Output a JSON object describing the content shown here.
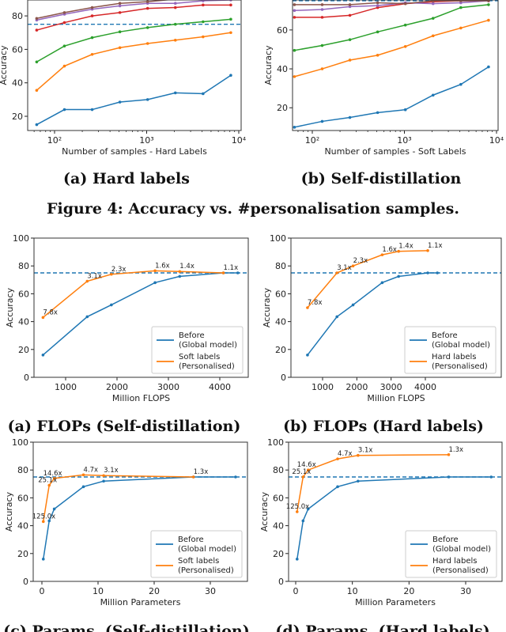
{
  "figure_caption": "Figure 4: Accuracy vs. #personalisation samples.",
  "subcaptions": [
    "(a) Hard labels",
    "(b) Self-distillation",
    "(a) FLOPs (Self-distillation)",
    "(b) FLOPs (Hard labels)",
    "(c) Params. (Self-distillation)",
    "(d) Params. (Hard labels)"
  ],
  "colors": {
    "blue": "#1f77b4",
    "orange": "#ff7f0e",
    "green": "#2ca02c",
    "red": "#d62728",
    "purple": "#9467bd",
    "brown": "#8c564b"
  },
  "chart_data": [
    {
      "type": "line",
      "xscale": "log",
      "xlabel": "Number of samples - Hard Labels",
      "ylabel": "Accuracy",
      "x": [
        64,
        128,
        256,
        512,
        1024,
        2048,
        4096,
        8192
      ],
      "xticks": [
        100,
        1000,
        10000
      ],
      "xtick_labels": [
        "10²",
        "10³",
        "10⁴"
      ],
      "yticks": [
        20,
        40,
        60,
        80
      ],
      "ylim": [
        11.5,
        89.5
      ],
      "baseline": 75,
      "series": [
        {
          "name": "s1",
          "color": "#1f77b4",
          "values": [
            15,
            24,
            24,
            28.5,
            30,
            34,
            33.5,
            44.5
          ]
        },
        {
          "name": "s2",
          "color": "#ff7f0e",
          "values": [
            35.5,
            50,
            57,
            61,
            63.5,
            65.5,
            67.5,
            70
          ]
        },
        {
          "name": "s3",
          "color": "#2ca02c",
          "values": [
            52.5,
            62,
            67,
            70.5,
            73,
            75,
            76.5,
            78
          ]
        },
        {
          "name": "s4",
          "color": "#d62728",
          "values": [
            71.5,
            76,
            80,
            82,
            84.5,
            85,
            86.5,
            86.5
          ]
        },
        {
          "name": "s5",
          "color": "#9467bd",
          "values": [
            77.5,
            81,
            84,
            86,
            87.5,
            87.5,
            89,
            89.5
          ]
        },
        {
          "name": "s6",
          "color": "#8c564b",
          "values": [
            78.5,
            82,
            85,
            87.5,
            88.5,
            90,
            91,
            92
          ]
        }
      ]
    },
    {
      "type": "line",
      "xscale": "log",
      "xlabel": "Number of samples - Soft Labels",
      "ylabel": "Accuracy",
      "x": [
        64,
        128,
        256,
        512,
        1024,
        2048,
        4096,
        8192
      ],
      "xticks": [
        100,
        1000,
        10000
      ],
      "xtick_labels": [
        "10²",
        "10³",
        "10⁴"
      ],
      "yticks": [
        20,
        40,
        60
      ],
      "ylim": [
        8.3,
        75.4
      ],
      "baseline": 75,
      "series": [
        {
          "name": "s1",
          "color": "#1f77b4",
          "values": [
            10,
            13,
            15,
            17.5,
            19,
            26.5,
            32,
            41
          ]
        },
        {
          "name": "s2",
          "color": "#ff7f0e",
          "values": [
            36,
            40,
            44.5,
            47,
            51.5,
            57,
            61,
            65
          ]
        },
        {
          "name": "s3",
          "color": "#2ca02c",
          "values": [
            49.5,
            52,
            55,
            59,
            62.5,
            66,
            71.5,
            73
          ]
        },
        {
          "name": "s4",
          "color": "#d62728",
          "values": [
            66.5,
            66.5,
            67.5,
            71.5,
            73.5,
            74.5,
            75,
            75
          ]
        },
        {
          "name": "s5",
          "color": "#9467bd",
          "values": [
            70,
            70.5,
            72,
            72.5,
            74,
            73.5,
            74,
            75
          ]
        },
        {
          "name": "s6",
          "color": "#8c564b",
          "values": [
            73,
            73,
            73,
            74,
            73.5,
            75,
            75,
            75
          ]
        }
      ]
    },
    {
      "type": "line",
      "xscale": "linear",
      "xlabel": "Million FLOPS",
      "ylabel": "Accuracy",
      "xticks": [
        1000,
        2000,
        3000,
        4000
      ],
      "xtick_labels": [
        "1000",
        "2000",
        "3000",
        "4000"
      ],
      "yticks": [
        0,
        20,
        40,
        60,
        80,
        100
      ],
      "ylim": [
        0,
        100
      ],
      "baseline": 75,
      "legend": "lower-right",
      "series": [
        {
          "name": "Before",
          "name2": "(Global model)",
          "color": "#1f77b4",
          "x": [
            560,
            1420,
            1890,
            2740,
            3220,
            4070,
            4350
          ],
          "values": [
            16,
            43.5,
            52,
            68,
            72.5,
            75,
            75
          ]
        },
        {
          "name": "Soft labels",
          "name2": "(Personalised)",
          "color": "#ff7f0e",
          "x": [
            560,
            1420,
            1890,
            2740,
            3220,
            4070
          ],
          "values": [
            43,
            69,
            74,
            76.5,
            76,
            75
          ],
          "annotations": [
            "7.8x",
            "3.1x",
            "2.3x",
            "1.6x",
            "1.4x",
            "1.1x"
          ]
        }
      ]
    },
    {
      "type": "line",
      "xscale": "linear",
      "xlabel": "Million FLOPS",
      "ylabel": "Accuracy",
      "xticks": [
        1000,
        2000,
        3000,
        4000
      ],
      "xtick_labels": [
        "1000",
        "2000",
        "3000",
        "4000"
      ],
      "yticks": [
        0,
        20,
        40,
        60,
        80,
        100
      ],
      "ylim": [
        0,
        100
      ],
      "baseline": 75,
      "legend": "lower-right",
      "series": [
        {
          "name": "Before",
          "name2": "(Global model)",
          "color": "#1f77b4",
          "x": [
            560,
            1420,
            1890,
            2740,
            3220,
            4070,
            4350
          ],
          "values": [
            16,
            43.5,
            52,
            68,
            72.5,
            75,
            75
          ]
        },
        {
          "name": "Hard labels",
          "name2": "(Personalised)",
          "color": "#ff7f0e",
          "x": [
            560,
            1420,
            1890,
            2740,
            3220,
            4070
          ],
          "values": [
            50,
            75,
            80,
            88,
            90.5,
            91
          ],
          "annotations": [
            "7.8x",
            "3.1x",
            "2.3x",
            "1.6x",
            "1.4x",
            "1.1x"
          ]
        }
      ]
    },
    {
      "type": "line",
      "xscale": "linear",
      "xlabel": "Million Parameters",
      "ylabel": "Accuracy",
      "xticks": [
        0,
        10,
        20,
        30
      ],
      "xtick_labels": [
        "0",
        "10",
        "20",
        "30"
      ],
      "yticks": [
        0,
        20,
        40,
        60,
        80,
        100
      ],
      "ylim": [
        0,
        100
      ],
      "baseline": 75,
      "legend": "lower-right",
      "series": [
        {
          "name": "Before",
          "name2": "(Global model)",
          "color": "#1f77b4",
          "x": [
            0.25,
            1.3,
            2.2,
            7.4,
            11,
            27,
            34.5
          ],
          "values": [
            16,
            43.5,
            52,
            68,
            72,
            75,
            75
          ]
        },
        {
          "name": "Soft labels",
          "name2": "(Personalised)",
          "color": "#ff7f0e",
          "x": [
            0.25,
            1.3,
            2.2,
            7.4,
            11,
            27
          ],
          "values": [
            43,
            69,
            74,
            76.5,
            76,
            75
          ],
          "annotations": [
            "125.0x",
            "25.1x",
            "14.6x",
            "4.7x",
            "3.1x",
            "1.3x"
          ]
        }
      ]
    },
    {
      "type": "line",
      "xscale": "linear",
      "xlabel": "Million Parameters",
      "ylabel": "Accuracy",
      "xticks": [
        0,
        10,
        20,
        30
      ],
      "xtick_labels": [
        "0",
        "10",
        "20",
        "30"
      ],
      "yticks": [
        0,
        20,
        40,
        60,
        80,
        100
      ],
      "ylim": [
        0,
        100
      ],
      "baseline": 75,
      "legend": "lower-right",
      "series": [
        {
          "name": "Before",
          "name2": "(Global model)",
          "color": "#1f77b4",
          "x": [
            0.25,
            1.3,
            2.2,
            7.4,
            11,
            27,
            34.5
          ],
          "values": [
            16,
            43.5,
            52,
            68,
            72,
            75,
            75
          ]
        },
        {
          "name": "Hard labels",
          "name2": "(Personalised)",
          "color": "#ff7f0e",
          "x": [
            0.25,
            1.3,
            2.2,
            7.4,
            11,
            27
          ],
          "values": [
            50,
            75,
            80,
            88,
            90.5,
            91
          ],
          "annotations": [
            "125.0x",
            "25.1x",
            "14.6x",
            "4.7x",
            "3.1x",
            "1.3x"
          ]
        }
      ]
    }
  ]
}
